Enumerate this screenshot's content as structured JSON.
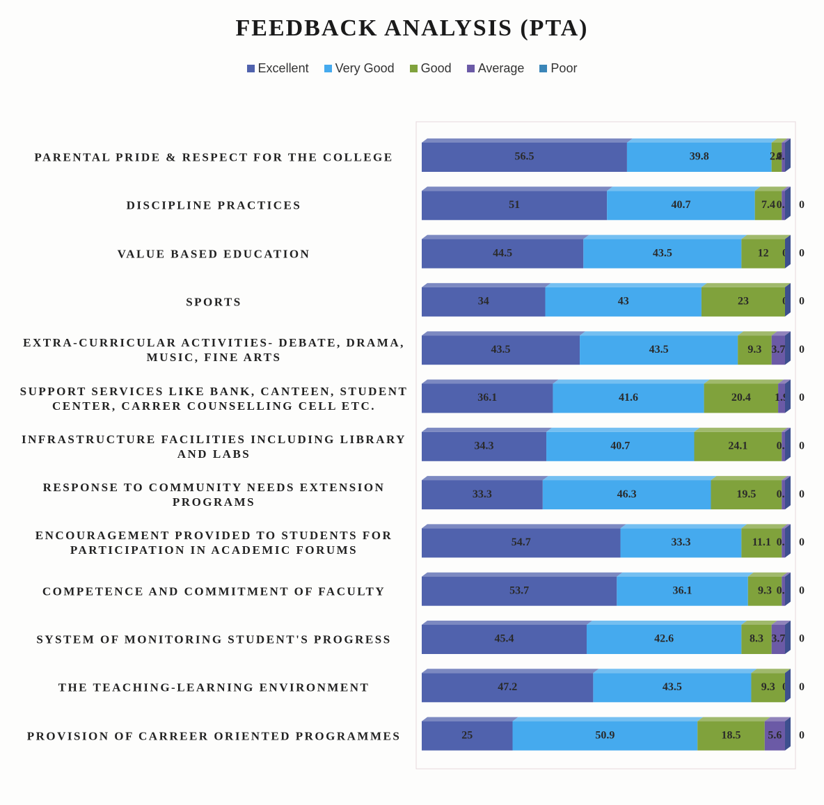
{
  "chart_data": {
    "type": "stacked_barh",
    "title": "FEEDBACK ANALYSIS (PTA)",
    "categories": [
      "PARENTAL PRIDE & RESPECT FOR THE COLLEGE",
      "DISCIPLINE PRACTICES",
      "VALUE BASED EDUCATION",
      "SPORTS",
      "EXTRA-CURRICULAR ACTIVITIES- DEBATE, DRAMA, MUSIC, FINE ARTS",
      "SUPPORT SERVICES LIKE BANK, CANTEEN, STUDENT CENTER, CARRER COUNSELLING CELL ETC.",
      "INFRASTRUCTURE FACILITIES INCLUDING LIBRARY AND LABS",
      "RESPONSE TO COMMUNITY NEEDS EXTENSION PROGRAMS",
      "ENCOURAGEMENT PROVIDED TO STUDENTS FOR PARTICIPATION IN ACADEMIC FORUMS",
      "COMPETENCE AND COMMITMENT OF FACULTY",
      "SYSTEM OF MONITORING STUDENT'S PROGRESS",
      "THE TEACHING-LEARNING ENVIRONMENT",
      "PROVISION OF CARREER ORIENTED PROGRAMMES"
    ],
    "series": [
      {
        "name": "Excellent",
        "color": "#5062ad",
        "values": [
          56.5,
          51,
          44.5,
          34,
          43.5,
          36.1,
          34.3,
          33.3,
          54.7,
          53.7,
          45.4,
          47.2,
          25
        ]
      },
      {
        "name": "Very Good",
        "color": "#45aaee",
        "values": [
          39.8,
          40.7,
          43.5,
          43,
          43.5,
          41.6,
          40.7,
          46.3,
          33.3,
          36.1,
          42.6,
          43.5,
          50.9
        ]
      },
      {
        "name": "Good",
        "color": "#80a23c",
        "values": [
          2.8,
          7.4,
          12,
          23,
          9.3,
          20.4,
          24.1,
          19.5,
          11.1,
          9.3,
          8.3,
          9.3,
          18.5
        ]
      },
      {
        "name": "Average",
        "color": "#6b5aa6",
        "values": [
          0.9,
          0.9,
          0,
          0,
          3.7,
          1.9,
          0.9,
          0.9,
          0.9,
          0.9,
          3.7,
          0,
          5.6
        ]
      },
      {
        "name": "Poor",
        "color": "#3b86b8",
        "values": [
          null,
          0,
          0,
          0,
          0,
          0,
          0,
          0,
          0,
          0,
          0,
          0,
          0
        ]
      }
    ],
    "xlim": [
      0,
      100
    ],
    "legend": "top"
  }
}
